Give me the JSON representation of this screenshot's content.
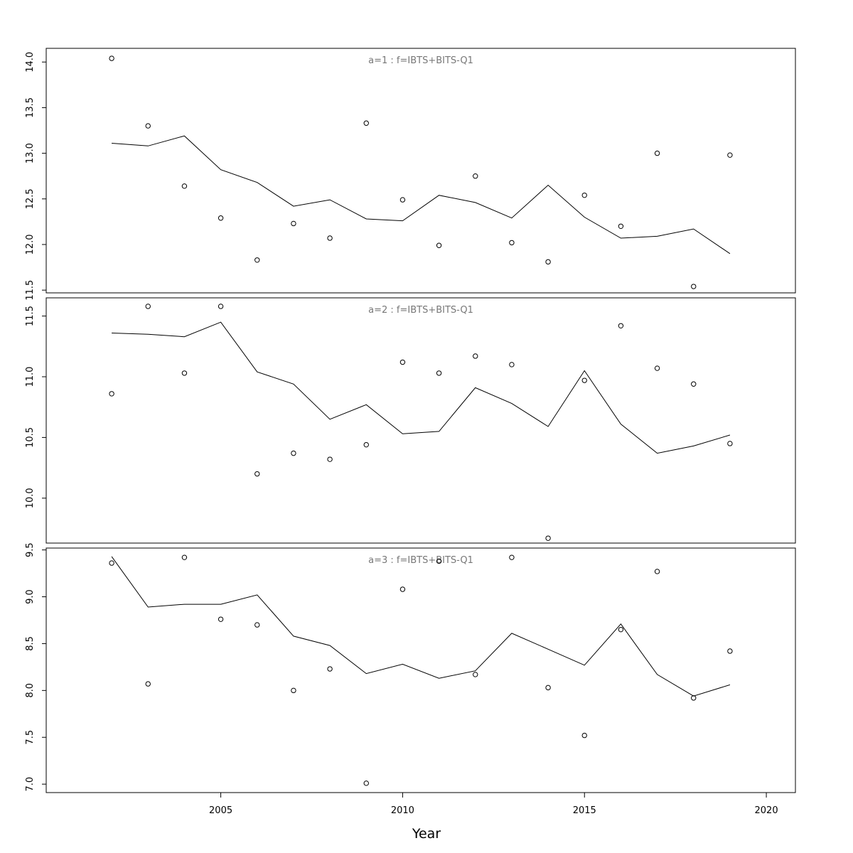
{
  "chart_data": {
    "type": "scatter",
    "xlabel": "Year",
    "xlim": [
      2000.2,
      2020.8
    ],
    "xticks": [
      2005,
      2010,
      2015,
      2020
    ],
    "panels": [
      {
        "title": "a=1  :  f=IBTS+BITS-Q1",
        "ylim": [
          11.47,
          14.15
        ],
        "yticks": [
          "11.5",
          "12.0",
          "12.5",
          "13.0",
          "13.5",
          "14.0"
        ],
        "series": [
          {
            "kind": "observed",
            "x": [
              2002,
              2003,
              2004,
              2005,
              2006,
              2007,
              2008,
              2009,
              2010,
              2011,
              2012,
              2013,
              2014,
              2015,
              2016,
              2017,
              2018,
              2019
            ],
            "y": [
              14.04,
              13.3,
              12.64,
              12.29,
              11.83,
              12.23,
              12.07,
              13.33,
              12.49,
              11.99,
              12.75,
              12.02,
              11.81,
              12.54,
              12.2,
              13.0,
              11.54,
              12.98
            ]
          },
          {
            "kind": "fitted",
            "x": [
              2002,
              2003,
              2004,
              2005,
              2006,
              2007,
              2008,
              2009,
              2010,
              2011,
              2012,
              2013,
              2014,
              2015,
              2016,
              2017,
              2018,
              2019
            ],
            "y": [
              13.11,
              13.08,
              13.19,
              12.82,
              12.68,
              12.42,
              12.49,
              12.28,
              12.26,
              12.54,
              12.46,
              12.29,
              12.65,
              12.3,
              12.07,
              12.09,
              12.17,
              11.9
            ]
          }
        ]
      },
      {
        "title": "a=2  :  f=IBTS+BITS-Q1",
        "ylim": [
          9.63,
          11.65
        ],
        "yticks": [
          "10.0",
          "10.5",
          "11.0",
          "11.5"
        ],
        "series": [
          {
            "kind": "observed",
            "x": [
              2002,
              2003,
              2004,
              2005,
              2006,
              2007,
              2008,
              2009,
              2010,
              2011,
              2012,
              2013,
              2014,
              2015,
              2016,
              2017,
              2018,
              2019
            ],
            "y": [
              10.86,
              11.58,
              11.03,
              11.58,
              10.2,
              10.37,
              10.32,
              10.44,
              11.12,
              11.03,
              11.17,
              11.1,
              9.67,
              10.97,
              11.42,
              11.07,
              10.94,
              10.45
            ]
          },
          {
            "kind": "fitted",
            "x": [
              2002,
              2003,
              2004,
              2005,
              2006,
              2007,
              2008,
              2009,
              2010,
              2011,
              2012,
              2013,
              2014,
              2015,
              2016,
              2017,
              2018,
              2019
            ],
            "y": [
              11.36,
              11.35,
              11.33,
              11.45,
              11.04,
              10.94,
              10.65,
              10.77,
              10.53,
              10.55,
              10.91,
              10.78,
              10.59,
              11.05,
              10.61,
              10.37,
              10.43,
              10.52
            ]
          }
        ]
      },
      {
        "title": "a=3  :  f=IBTS+BITS-Q1",
        "ylim": [
          6.91,
          9.52
        ],
        "yticks": [
          "7.0",
          "7.5",
          "8.0",
          "8.5",
          "9.0",
          "9.5"
        ],
        "series": [
          {
            "kind": "observed",
            "x": [
              2002,
              2003,
              2004,
              2005,
              2006,
              2007,
              2008,
              2009,
              2010,
              2011,
              2012,
              2013,
              2014,
              2015,
              2016,
              2017,
              2018,
              2019
            ],
            "y": [
              9.36,
              8.07,
              9.42,
              8.76,
              8.7,
              8.0,
              8.23,
              7.01,
              9.08,
              9.38,
              8.17,
              9.42,
              8.03,
              7.52,
              8.65,
              9.27,
              7.92,
              8.42
            ]
          },
          {
            "kind": "fitted",
            "x": [
              2002,
              2003,
              2004,
              2005,
              2006,
              2007,
              2008,
              2009,
              2010,
              2011,
              2012,
              2013,
              2014,
              2015,
              2016,
              2017,
              2018,
              2019
            ],
            "y": [
              9.43,
              8.89,
              8.92,
              8.92,
              9.02,
              8.58,
              8.48,
              8.18,
              8.28,
              8.13,
              8.21,
              8.61,
              8.44,
              8.27,
              8.71,
              8.17,
              7.94,
              8.06
            ]
          }
        ]
      }
    ]
  }
}
